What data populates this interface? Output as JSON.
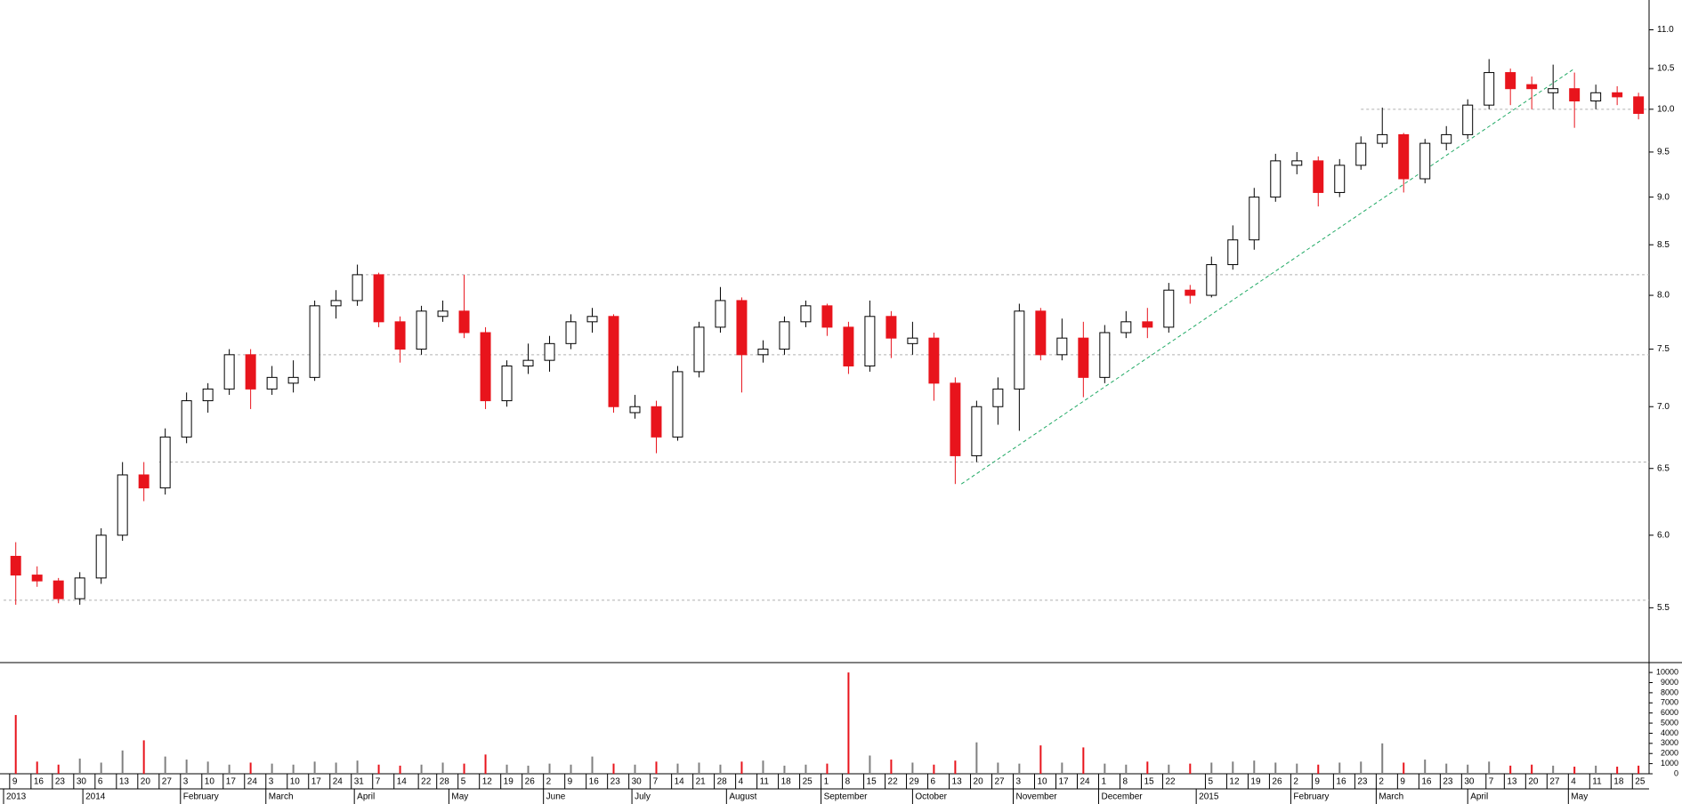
{
  "chart_data": [
    {
      "type": "candlestick",
      "x": [
        "2013-12-09",
        "2013-12-16",
        "2013-12-23",
        "2013-12-30",
        "2014-01-06",
        "2014-01-13",
        "2014-01-20",
        "2014-01-27",
        "2014-02-03",
        "2014-02-10",
        "2014-02-17",
        "2014-02-24",
        "2014-03-03",
        "2014-03-10",
        "2014-03-17",
        "2014-03-24",
        "2014-03-31",
        "2014-04-07",
        "2014-04-14",
        "2014-04-21",
        "2014-04-28",
        "2014-05-05",
        "2014-05-12",
        "2014-05-19",
        "2014-05-26",
        "2014-06-02",
        "2014-06-09",
        "2014-06-16",
        "2014-06-23",
        "2014-06-30",
        "2014-07-07",
        "2014-07-14",
        "2014-07-21",
        "2014-07-28",
        "2014-08-04",
        "2014-08-11",
        "2014-08-18",
        "2014-08-25",
        "2014-09-01",
        "2014-09-08",
        "2014-09-15",
        "2014-09-22",
        "2014-09-29",
        "2014-10-06",
        "2014-10-13",
        "2014-10-20",
        "2014-10-27",
        "2014-11-03",
        "2014-11-10",
        "2014-11-17",
        "2014-11-24",
        "2014-12-01",
        "2014-12-08",
        "2014-12-15",
        "2014-12-22",
        "2014-12-29",
        "2015-01-05",
        "2015-01-12",
        "2015-01-19",
        "2015-01-26",
        "2015-02-02",
        "2015-02-09",
        "2015-02-16",
        "2015-02-23",
        "2015-03-02",
        "2015-03-09",
        "2015-03-16",
        "2015-03-23",
        "2015-03-30",
        "2015-04-06",
        "2015-04-13",
        "2015-04-20",
        "2015-04-27",
        "2015-05-04",
        "2015-05-11",
        "2015-05-18",
        "2015-05-25"
      ],
      "open": [
        5.85,
        5.72,
        5.68,
        5.56,
        5.7,
        6.0,
        6.45,
        6.35,
        6.75,
        7.05,
        7.15,
        7.45,
        7.15,
        7.2,
        7.25,
        7.9,
        7.95,
        8.2,
        7.75,
        7.5,
        7.8,
        7.85,
        7.65,
        7.05,
        7.35,
        7.4,
        7.55,
        7.75,
        7.8,
        6.95,
        7.0,
        6.75,
        7.3,
        7.7,
        7.95,
        7.45,
        7.5,
        7.75,
        7.9,
        7.7,
        7.35,
        7.8,
        7.55,
        7.6,
        7.2,
        6.6,
        7.0,
        7.15,
        7.85,
        7.45,
        7.6,
        7.25,
        7.65,
        7.75,
        7.7,
        8.05,
        8.0,
        8.3,
        8.55,
        9.0,
        9.35,
        9.4,
        9.05,
        9.35,
        9.6,
        9.7,
        9.2,
        9.6,
        9.7,
        10.05,
        10.45,
        10.3,
        10.2,
        10.25,
        10.1,
        10.2,
        10.15
      ],
      "high": [
        5.95,
        5.78,
        5.7,
        5.74,
        6.05,
        6.55,
        6.55,
        6.82,
        7.12,
        7.2,
        7.5,
        7.5,
        7.35,
        7.4,
        7.95,
        8.05,
        8.3,
        8.22,
        7.8,
        7.9,
        7.95,
        8.2,
        7.7,
        7.4,
        7.55,
        7.62,
        7.82,
        7.88,
        7.82,
        7.1,
        7.05,
        7.35,
        7.75,
        8.08,
        7.98,
        7.58,
        7.8,
        7.95,
        7.92,
        7.75,
        7.95,
        7.85,
        7.75,
        7.65,
        7.25,
        7.05,
        7.25,
        7.92,
        7.88,
        7.78,
        7.75,
        7.72,
        7.85,
        7.88,
        8.12,
        8.1,
        8.38,
        8.7,
        9.1,
        9.48,
        9.5,
        9.45,
        9.42,
        9.68,
        10.02,
        9.72,
        9.65,
        9.8,
        10.12,
        10.62,
        10.5,
        10.4,
        10.55,
        10.45,
        10.3,
        10.28,
        10.2
      ],
      "low": [
        5.52,
        5.64,
        5.53,
        5.52,
        5.66,
        5.96,
        6.25,
        6.3,
        6.7,
        6.95,
        7.1,
        6.98,
        7.1,
        7.12,
        7.22,
        7.78,
        7.9,
        7.7,
        7.38,
        7.45,
        7.75,
        7.6,
        6.98,
        7.0,
        7.28,
        7.3,
        7.5,
        7.65,
        6.95,
        6.9,
        6.62,
        6.72,
        7.25,
        7.65,
        7.12,
        7.38,
        7.45,
        7.7,
        7.62,
        7.28,
        7.3,
        7.42,
        7.45,
        7.05,
        6.38,
        6.55,
        6.85,
        6.8,
        7.4,
        7.4,
        7.08,
        7.2,
        7.6,
        7.6,
        7.65,
        7.92,
        7.98,
        8.25,
        8.45,
        8.95,
        9.25,
        8.9,
        9.0,
        9.3,
        9.55,
        9.05,
        9.15,
        9.52,
        9.65,
        10.0,
        10.05,
        10.0,
        10.0,
        9.78,
        10.0,
        10.05,
        9.88
      ],
      "close": [
        5.72,
        5.68,
        5.56,
        5.7,
        6.0,
        6.45,
        6.35,
        6.75,
        7.05,
        7.15,
        7.45,
        7.15,
        7.25,
        7.25,
        7.9,
        7.95,
        8.2,
        7.75,
        7.5,
        7.85,
        7.85,
        7.65,
        7.05,
        7.35,
        7.4,
        7.55,
        7.75,
        7.8,
        7.0,
        7.0,
        6.75,
        7.3,
        7.7,
        7.95,
        7.45,
        7.5,
        7.75,
        7.9,
        7.7,
        7.35,
        7.8,
        7.6,
        7.6,
        7.2,
        6.6,
        7.0,
        7.15,
        7.85,
        7.45,
        7.6,
        7.25,
        7.65,
        7.75,
        7.7,
        8.05,
        8.0,
        8.3,
        8.55,
        9.0,
        9.4,
        9.4,
        9.05,
        9.35,
        9.6,
        9.7,
        9.2,
        9.6,
        9.7,
        10.05,
        10.45,
        10.25,
        10.25,
        10.25,
        10.1,
        10.2,
        10.15,
        9.95
      ],
      "up_color": "#000000",
      "down_color": "#e8141c",
      "y_scale": "log",
      "ylim": [
        5.15,
        11.4
      ],
      "yticks": [
        {
          "value": 5.5,
          "label": "5.5"
        },
        {
          "value": 6,
          "label": "6.0"
        },
        {
          "value": 6.5,
          "label": "6.5"
        },
        {
          "value": 7,
          "label": "7.0"
        },
        {
          "value": 7.5,
          "label": "7.5"
        },
        {
          "value": 8,
          "label": "8.0"
        },
        {
          "value": 8.5,
          "label": "8.5"
        },
        {
          "value": 9,
          "label": "9.0"
        },
        {
          "value": 9.5,
          "label": "9.5"
        },
        {
          "value": 10,
          "label": "10.0"
        },
        {
          "value": 10.5,
          "label": "10.5"
        },
        {
          "value": 11,
          "label": "11.0"
        }
      ],
      "xlim": [
        "2013-12-07",
        "2015-05-29"
      ],
      "xticks": [
        {
          "value": "2013-12-09",
          "label": "9"
        },
        {
          "value": "2013-12-16",
          "label": "16"
        },
        {
          "value": "2013-12-23",
          "label": "23"
        },
        {
          "value": "2013-12-30",
          "label": "30"
        },
        {
          "value": "2014-01-06",
          "label": "6"
        },
        {
          "value": "2014-01-13",
          "label": "13"
        },
        {
          "value": "2014-01-20",
          "label": "20"
        },
        {
          "value": "2014-01-27",
          "label": "27"
        },
        {
          "value": "2014-02-03",
          "label": "3"
        },
        {
          "value": "2014-02-10",
          "label": "10"
        },
        {
          "value": "2014-02-17",
          "label": "17"
        },
        {
          "value": "2014-02-24",
          "label": "24"
        },
        {
          "value": "2014-03-03",
          "label": "3"
        },
        {
          "value": "2014-03-10",
          "label": "10"
        },
        {
          "value": "2014-03-17",
          "label": "17"
        },
        {
          "value": "2014-03-24",
          "label": "24"
        },
        {
          "value": "2014-03-31",
          "label": "31"
        },
        {
          "value": "2014-04-07",
          "label": "7"
        },
        {
          "value": "2014-04-14",
          "label": "14"
        },
        {
          "value": "2014-04-22",
          "label": "22"
        },
        {
          "value": "2014-04-28",
          "label": "28"
        },
        {
          "value": "2014-05-05",
          "label": "5"
        },
        {
          "value": "2014-05-12",
          "label": "12"
        },
        {
          "value": "2014-05-19",
          "label": "19"
        },
        {
          "value": "2014-05-26",
          "label": "26"
        },
        {
          "value": "2014-06-02",
          "label": "2"
        },
        {
          "value": "2014-06-09",
          "label": "9"
        },
        {
          "value": "2014-06-16",
          "label": "16"
        },
        {
          "value": "2014-06-23",
          "label": "23"
        },
        {
          "value": "2014-06-30",
          "label": "30"
        },
        {
          "value": "2014-07-07",
          "label": "7"
        },
        {
          "value": "2014-07-14",
          "label": "14"
        },
        {
          "value": "2014-07-21",
          "label": "21"
        },
        {
          "value": "2014-07-28",
          "label": "28"
        },
        {
          "value": "2014-08-04",
          "label": "4"
        },
        {
          "value": "2014-08-11",
          "label": "11"
        },
        {
          "value": "2014-08-18",
          "label": "18"
        },
        {
          "value": "2014-08-25",
          "label": "25"
        },
        {
          "value": "2014-09-01",
          "label": "1"
        },
        {
          "value": "2014-09-08",
          "label": "8"
        },
        {
          "value": "2014-09-15",
          "label": "15"
        },
        {
          "value": "2014-09-22",
          "label": "22"
        },
        {
          "value": "2014-09-29",
          "label": "29"
        },
        {
          "value": "2014-10-06",
          "label": "6"
        },
        {
          "value": "2014-10-13",
          "label": "13"
        },
        {
          "value": "2014-10-20",
          "label": "20"
        },
        {
          "value": "2014-10-27",
          "label": "27"
        },
        {
          "value": "2014-11-03",
          "label": "3"
        },
        {
          "value": "2014-11-10",
          "label": "10"
        },
        {
          "value": "2014-11-17",
          "label": "17"
        },
        {
          "value": "2014-11-24",
          "label": "24"
        },
        {
          "value": "2014-12-01",
          "label": "1"
        },
        {
          "value": "2014-12-08",
          "label": "8"
        },
        {
          "value": "2014-12-15",
          "label": "15"
        },
        {
          "value": "2014-12-22",
          "label": "22"
        },
        {
          "value": "2015-01-05",
          "label": "5"
        },
        {
          "value": "2015-01-12",
          "label": "12"
        },
        {
          "value": "2015-01-19",
          "label": "19"
        },
        {
          "value": "2015-01-26",
          "label": "26"
        },
        {
          "value": "2015-02-02",
          "label": "2"
        },
        {
          "value": "2015-02-09",
          "label": "9"
        },
        {
          "value": "2015-02-16",
          "label": "16"
        },
        {
          "value": "2015-02-23",
          "label": "23"
        },
        {
          "value": "2015-03-02",
          "label": "2"
        },
        {
          "value": "2015-03-09",
          "label": "9"
        },
        {
          "value": "2015-03-16",
          "label": "16"
        },
        {
          "value": "2015-03-23",
          "label": "23"
        },
        {
          "value": "2015-03-30",
          "label": "30"
        },
        {
          "value": "2015-04-07",
          "label": "7"
        },
        {
          "value": "2015-04-13",
          "label": "13"
        },
        {
          "value": "2015-04-20",
          "label": "20"
        },
        {
          "value": "2015-04-27",
          "label": "27"
        },
        {
          "value": "2015-05-04",
          "label": "4"
        },
        {
          "value": "2015-05-11",
          "label": "11"
        },
        {
          "value": "2015-05-18",
          "label": "18"
        },
        {
          "value": "2015-05-25",
          "label": "25"
        }
      ],
      "month_ticks": [
        {
          "value": "2013-12-07",
          "label": "2013"
        },
        {
          "value": "2014-01-02",
          "label": "2014"
        },
        {
          "value": "2014-02-03",
          "label": "February"
        },
        {
          "value": "2014-03-03",
          "label": "March"
        },
        {
          "value": "2014-04-01",
          "label": "April"
        },
        {
          "value": "2014-05-02",
          "label": "May"
        },
        {
          "value": "2014-06-02",
          "label": "June"
        },
        {
          "value": "2014-07-01",
          "label": "July"
        },
        {
          "value": "2014-08-01",
          "label": "August"
        },
        {
          "value": "2014-09-01",
          "label": "September"
        },
        {
          "value": "2014-10-01",
          "label": "October"
        },
        {
          "value": "2014-11-03",
          "label": "November"
        },
        {
          "value": "2014-12-01",
          "label": "December"
        },
        {
          "value": "2015-01-02",
          "label": "2015"
        },
        {
          "value": "2015-02-02",
          "label": "February"
        },
        {
          "value": "2015-03-02",
          "label": "March"
        },
        {
          "value": "2015-04-01",
          "label": "April"
        },
        {
          "value": "2015-05-04",
          "label": "May"
        }
      ],
      "hlines": [
        {
          "value": 10.0,
          "from": "2015-02-25"
        },
        {
          "value": 8.2,
          "from": "2014-04-03"
        },
        {
          "value": 7.45,
          "from": "2014-02-20"
        },
        {
          "value": 6.55,
          "from": "2014-01-27"
        },
        {
          "value": 5.55,
          "from": "2013-12-07"
        }
      ],
      "hline_color": "#b0b0b0",
      "trendline": {
        "from": [
          "2014-10-17",
          6.38
        ],
        "to": [
          "2015-05-06",
          10.5
        ],
        "color": "#22aa66"
      }
    },
    {
      "type": "bar",
      "values": [
        5800,
        1200,
        900,
        1500,
        1100,
        2300,
        3300,
        1700,
        1400,
        1200,
        900,
        1100,
        1000,
        900,
        1200,
        1100,
        1300,
        900,
        800,
        900,
        1100,
        1000,
        1900,
        900,
        800,
        1000,
        900,
        1700,
        1000,
        900,
        1200,
        1000,
        1100,
        900,
        1200,
        1300,
        800,
        900,
        1000,
        10000,
        1800,
        1400,
        1100,
        900,
        1300,
        3100,
        1100,
        1000,
        2800,
        1100,
        2600,
        1000,
        900,
        1200,
        900,
        1000,
        1100,
        1200,
        1300,
        1100,
        1000,
        900,
        1100,
        1200,
        3000,
        1100,
        1400,
        1000,
        900,
        1200,
        800,
        900,
        800,
        700,
        800,
        700,
        800
      ],
      "up_color": "#808080",
      "down_color": "#e8141c",
      "ylim": [
        0,
        10800
      ],
      "yticks": [
        0,
        1000,
        2000,
        3000,
        4000,
        5000,
        6000,
        7000,
        8000,
        9000,
        10000
      ]
    }
  ]
}
